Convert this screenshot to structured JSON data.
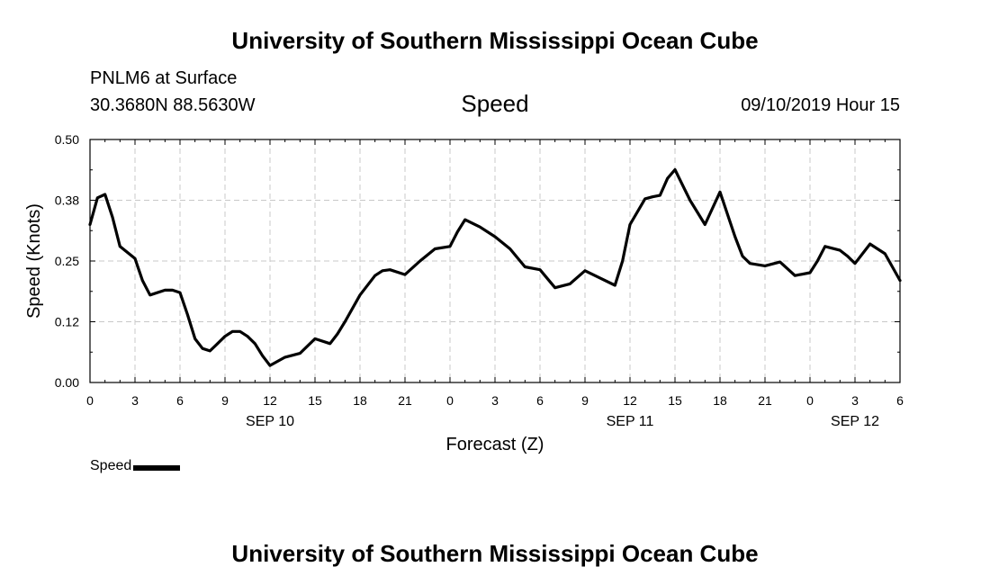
{
  "header": {
    "title_top": "University of Southern Mississippi Ocean Cube",
    "station": "PNLM6 at Surface",
    "coords": "30.3680N 88.5630W",
    "datetime": "09/10/2019 Hour 15",
    "title_bottom": "University of Southern Mississippi Ocean Cube"
  },
  "chart_data": {
    "type": "line",
    "title": "Speed",
    "xlabel": "Forecast (Z)",
    "ylabel": "Speed (Knots)",
    "ylim": [
      0,
      0.5
    ],
    "xlim_hours": [
      0,
      54
    ],
    "y_ticks": [
      "0.00",
      "0.12",
      "0.25",
      "0.38",
      "0.50"
    ],
    "x_tick_labels": [
      "0",
      "3",
      "6",
      "9",
      "12",
      "15",
      "18",
      "21",
      "0",
      "3",
      "6",
      "9",
      "12",
      "15",
      "18",
      "21",
      "0",
      "3",
      "6"
    ],
    "date_labels": [
      {
        "label": "SEP 10",
        "hour": 12
      },
      {
        "label": "SEP 11",
        "hour": 36
      },
      {
        "label": "SEP 12",
        "hour": 51
      }
    ],
    "x_axis_start": "09/10/2019 00Z",
    "grid": true,
    "legend": "bottom-left",
    "series": [
      {
        "name": "Speed",
        "color": "#000000",
        "hours": [
          0,
          0.5,
          1,
          1.5,
          2,
          3,
          3.5,
          4,
          5,
          5.5,
          6,
          6.5,
          7,
          7.5,
          8,
          8.5,
          9,
          9.5,
          10,
          10.5,
          11,
          11.5,
          12,
          13,
          14,
          15,
          16,
          16.5,
          17,
          18,
          19,
          19.5,
          20,
          21,
          22,
          23,
          24,
          24.5,
          25,
          26,
          27,
          28,
          29,
          30,
          31,
          32,
          33,
          34,
          35,
          35.5,
          36,
          37,
          37.5,
          38,
          38.5,
          39,
          40,
          41,
          42,
          43,
          43.5,
          44,
          45,
          46,
          47,
          48,
          48.5,
          49,
          50,
          50.5,
          51,
          52,
          53,
          54
        ],
        "values": [
          0.325,
          0.38,
          0.387,
          0.34,
          0.28,
          0.255,
          0.21,
          0.18,
          0.19,
          0.19,
          0.185,
          0.14,
          0.09,
          0.07,
          0.065,
          0.08,
          0.095,
          0.105,
          0.105,
          0.095,
          0.08,
          0.055,
          0.035,
          0.052,
          0.06,
          0.09,
          0.08,
          0.1,
          0.125,
          0.18,
          0.22,
          0.23,
          0.232,
          0.222,
          0.25,
          0.275,
          0.28,
          0.31,
          0.335,
          0.32,
          0.3,
          0.275,
          0.238,
          0.232,
          0.195,
          0.203,
          0.23,
          0.215,
          0.2,
          0.25,
          0.325,
          0.378,
          0.382,
          0.385,
          0.42,
          0.438,
          0.375,
          0.325,
          0.392,
          0.3,
          0.26,
          0.245,
          0.24,
          0.248,
          0.22,
          0.226,
          0.25,
          0.28,
          0.272,
          0.26,
          0.245,
          0.285,
          0.265,
          0.21
        ]
      }
    ]
  }
}
